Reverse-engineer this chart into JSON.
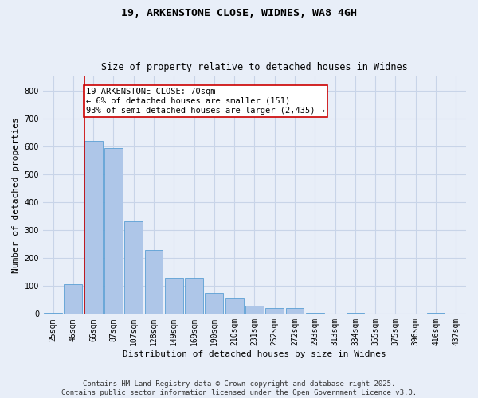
{
  "title_line1": "19, ARKENSTONE CLOSE, WIDNES, WA8 4GH",
  "title_line2": "Size of property relative to detached houses in Widnes",
  "xlabel": "Distribution of detached houses by size in Widnes",
  "ylabel": "Number of detached properties",
  "categories": [
    "25sqm",
    "46sqm",
    "66sqm",
    "87sqm",
    "107sqm",
    "128sqm",
    "149sqm",
    "169sqm",
    "190sqm",
    "210sqm",
    "231sqm",
    "252sqm",
    "272sqm",
    "293sqm",
    "313sqm",
    "334sqm",
    "355sqm",
    "375sqm",
    "396sqm",
    "416sqm",
    "437sqm"
  ],
  "values": [
    5,
    107,
    620,
    595,
    333,
    230,
    130,
    130,
    75,
    55,
    30,
    20,
    20,
    5,
    0,
    5,
    0,
    0,
    0,
    5,
    0
  ],
  "bar_color": "#aec6e8",
  "bar_edge_color": "#5a9fd4",
  "vline_color": "#cc0000",
  "vline_x_index": 2,
  "annotation_text": "19 ARKENSTONE CLOSE: 70sqm\n← 6% of detached houses are smaller (151)\n93% of semi-detached houses are larger (2,435) →",
  "annotation_box_color": "#ffffff",
  "annotation_box_edge_color": "#cc0000",
  "ylim": [
    0,
    850
  ],
  "yticks": [
    0,
    100,
    200,
    300,
    400,
    500,
    600,
    700,
    800
  ],
  "grid_color": "#c8d4e8",
  "background_color": "#e8eef8",
  "footer_text": "Contains HM Land Registry data © Crown copyright and database right 2025.\nContains public sector information licensed under the Open Government Licence v3.0.",
  "title_fontsize": 9.5,
  "subtitle_fontsize": 8.5,
  "axis_label_fontsize": 8,
  "tick_fontsize": 7,
  "annotation_fontsize": 7.5,
  "footer_fontsize": 6.5
}
